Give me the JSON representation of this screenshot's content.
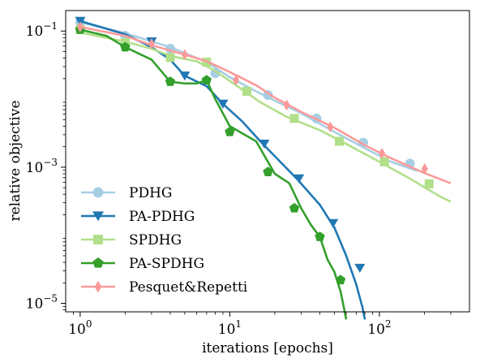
{
  "chart_data": {
    "type": "line",
    "x_scale": "log",
    "y_scale": "log",
    "xlim": [
      0.8,
      400
    ],
    "ylim": [
      7.5e-06,
      0.2
    ],
    "xlabel": "iterations [epochs]",
    "ylabel": "relative objective",
    "x_ticks": [
      {
        "value": 1,
        "base": "10",
        "exp": "0"
      },
      {
        "value": 10,
        "base": "10",
        "exp": "1"
      },
      {
        "value": 100,
        "base": "10",
        "exp": "2"
      }
    ],
    "y_ticks": [
      {
        "value": 0.1,
        "base": "10",
        "exp": "−1"
      },
      {
        "value": 0.001,
        "base": "10",
        "exp": "−3"
      },
      {
        "value": 1e-05,
        "base": "10",
        "exp": "−5"
      }
    ],
    "legend_position": "lower-left",
    "series": [
      {
        "name": "PDHG",
        "color": "#a6cee3",
        "marker": "circle",
        "line": [
          [
            1,
            0.135
          ],
          [
            2,
            0.093
          ],
          [
            4,
            0.058
          ],
          [
            7,
            0.035
          ],
          [
            10,
            0.021
          ],
          [
            15,
            0.013
          ],
          [
            20,
            0.0095
          ],
          [
            30,
            0.0062
          ],
          [
            50,
            0.0033
          ],
          [
            80,
            0.0019
          ],
          [
            120,
            0.0012
          ],
          [
            180,
            0.00088
          ]
        ],
        "points": [
          [
            1,
            0.135
          ],
          [
            2,
            0.085
          ],
          [
            4,
            0.055
          ],
          [
            8,
            0.024
          ],
          [
            18,
            0.0115
          ],
          [
            38,
            0.0052
          ],
          [
            78,
            0.0023
          ],
          [
            160,
            0.00113
          ]
        ]
      },
      {
        "name": "PA-PDHG",
        "color": "#1f78b4",
        "marker": "triangle-down",
        "line": [
          [
            1,
            0.14
          ],
          [
            2,
            0.09
          ],
          [
            3,
            0.058
          ],
          [
            4,
            0.038
          ],
          [
            5,
            0.022
          ],
          [
            7,
            0.0155
          ],
          [
            9,
            0.0085
          ],
          [
            12,
            0.0048
          ],
          [
            16,
            0.0024
          ],
          [
            20,
            0.00145
          ],
          [
            28,
            0.00068
          ],
          [
            40,
            0.00028
          ],
          [
            50,
            0.00013
          ],
          [
            60,
            5e-05
          ],
          [
            70,
            1.9e-05
          ],
          [
            77,
            8.8e-06
          ],
          [
            80,
            5.8e-06
          ]
        ],
        "points": [
          [
            1,
            0.14
          ],
          [
            3,
            0.07
          ],
          [
            5,
            0.022
          ],
          [
            9,
            0.0085
          ],
          [
            17,
            0.0022
          ],
          [
            29,
            0.00068
          ],
          [
            49,
            0.00015
          ],
          [
            74,
            3.3e-05
          ]
        ]
      },
      {
        "name": "SPDHG",
        "color": "#b2df8a",
        "marker": "square",
        "line": [
          [
            1,
            0.095
          ],
          [
            2,
            0.07
          ],
          [
            3,
            0.055
          ],
          [
            4,
            0.043
          ],
          [
            6,
            0.036
          ],
          [
            8,
            0.026
          ],
          [
            12,
            0.014
          ],
          [
            16,
            0.009
          ],
          [
            24,
            0.0055
          ],
          [
            40,
            0.0035
          ],
          [
            60,
            0.0022
          ],
          [
            100,
            0.0012
          ],
          [
            160,
            0.00068
          ],
          [
            250,
            0.00038
          ],
          [
            300,
            0.00031
          ]
        ],
        "points": [
          [
            1,
            0.105
          ],
          [
            2,
            0.068
          ],
          [
            4,
            0.041
          ],
          [
            7,
            0.035
          ],
          [
            13,
            0.013
          ],
          [
            27,
            0.0052
          ],
          [
            54,
            0.0024
          ],
          [
            108,
            0.0012
          ],
          [
            215,
            0.00057
          ]
        ]
      },
      {
        "name": "PA-SPDHG",
        "color": "#33a02c",
        "marker": "pentagon",
        "line": [
          [
            1,
            0.105
          ],
          [
            1.5,
            0.085
          ],
          [
            2,
            0.058
          ],
          [
            3,
            0.038
          ],
          [
            4,
            0.018
          ],
          [
            5,
            0.017
          ],
          [
            6,
            0.017
          ],
          [
            7,
            0.019
          ],
          [
            8,
            0.01
          ],
          [
            10,
            0.004
          ],
          [
            15,
            0.0024
          ],
          [
            20,
            0.0008
          ],
          [
            25,
            0.00058
          ],
          [
            30,
            0.00025
          ],
          [
            35,
            0.00014
          ],
          [
            40,
            9.5e-05
          ],
          [
            45,
            4.4e-05
          ],
          [
            50,
            2.9e-05
          ],
          [
            55,
            1.5e-05
          ],
          [
            58,
            8.5e-06
          ],
          [
            60,
            5.8e-06
          ]
        ],
        "points": [
          [
            1,
            0.105
          ],
          [
            2,
            0.058
          ],
          [
            4,
            0.018
          ],
          [
            7,
            0.019
          ],
          [
            10,
            0.0033
          ],
          [
            18,
            0.00085
          ],
          [
            27,
            0.00025
          ],
          [
            40,
            9.5e-05
          ],
          [
            55,
            2.2e-05
          ]
        ]
      },
      {
        "name": "Pesquet&Repetti",
        "color": "#fb9a99",
        "marker": "thin-diamond",
        "line": [
          [
            1,
            0.115
          ],
          [
            2,
            0.085
          ],
          [
            3,
            0.062
          ],
          [
            5,
            0.045
          ],
          [
            7,
            0.036
          ],
          [
            10,
            0.025
          ],
          [
            15,
            0.016
          ],
          [
            20,
            0.0105
          ],
          [
            30,
            0.0065
          ],
          [
            50,
            0.0038
          ],
          [
            80,
            0.0021
          ],
          [
            120,
            0.00135
          ],
          [
            200,
            0.00082
          ],
          [
            300,
            0.00058
          ]
        ],
        "points": [
          [
            1,
            0.115
          ],
          [
            3,
            0.065
          ],
          [
            5,
            0.045
          ],
          [
            11,
            0.019
          ],
          [
            24,
            0.0082
          ],
          [
            47,
            0.0039
          ],
          [
            104,
            0.0016
          ],
          [
            201,
            0.00095
          ]
        ]
      }
    ]
  }
}
